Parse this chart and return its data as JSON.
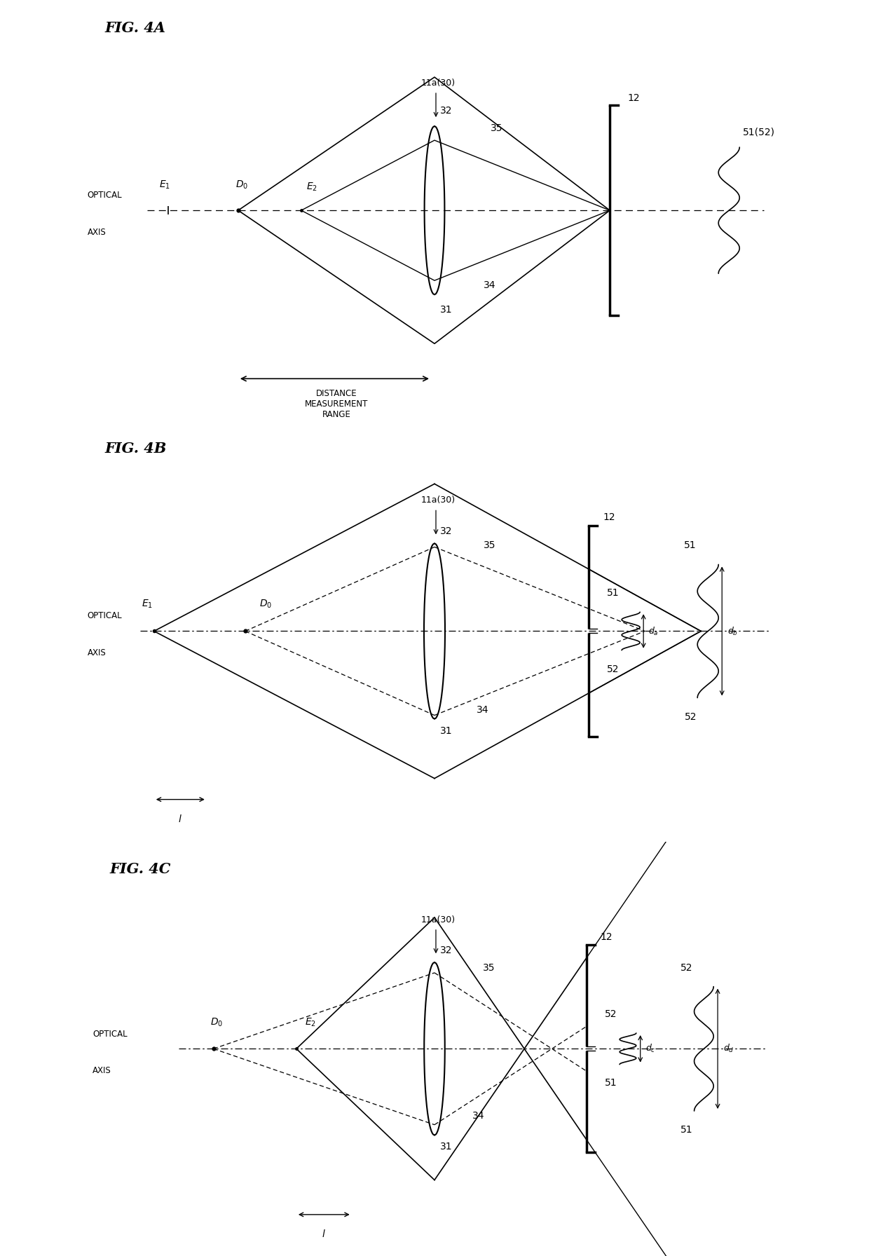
{
  "fig_labels": [
    "FIG. 4A",
    "FIG. 4B",
    "FIG. 4C"
  ],
  "background_color": "#ffffff"
}
